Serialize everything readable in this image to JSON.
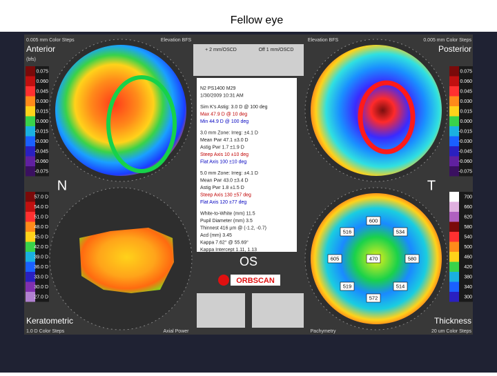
{
  "header": {
    "title": "Fellow eye"
  },
  "maps": [
    {
      "name": "Anterior",
      "map_type": "Elevation BFS",
      "steps": "0.005 mm Color Steps",
      "reference": "(bfs)",
      "scale": [
        "0.075",
        "0.060",
        "0.045",
        "0.030",
        "0.015",
        "0.000",
        "-0.015",
        "-0.030",
        "-0.045",
        "-0.060",
        "-0.075"
      ]
    },
    {
      "name": "Posterior",
      "map_type": "Elevation BFS",
      "steps": "0.005 mm Color Steps",
      "scale": [
        "0.075",
        "0.060",
        "0.045",
        "0.030",
        "0.015",
        "0.000",
        "-0.015",
        "-0.030",
        "-0.045",
        "-0.060",
        "-0.075"
      ]
    },
    {
      "name": "Keratometric",
      "map_type": "Axial Power",
      "steps": "1.0 D Color Steps",
      "scale": [
        "57.0 D",
        "54.0 D",
        "51.0 D",
        "48.0 D",
        "45.0 D",
        "42.0 D",
        "39.0 D",
        "36.0 D",
        "33.0 D",
        "30.0 D",
        "27.0 D"
      ]
    },
    {
      "name": "Thickness",
      "map_type": "Pachymetry",
      "steps": "20 um Color Steps",
      "scale": [
        "700",
        "660",
        "620",
        "580",
        "540",
        "500",
        "460",
        "420",
        "380",
        "340",
        "300"
      ]
    }
  ],
  "orientation": {
    "nasal": "N",
    "temporal": "T",
    "eye": "OS"
  },
  "top_boxes": [
    "+ 2 mm/OSCD",
    "Off 1 mm/OSCD"
  ],
  "info": {
    "lines": [
      "N2 PS1400 M29",
      "1/30/2009 10:31 AM",
      "Sim K's Astig: 3.0 D @ 100 deg",
      "Max 47.9 D @ 10 deg",
      "Min 44.9 D @ 100 deg",
      "3.0 mm Zone:  Irreg: ±4.1 D",
      "Mean Pwr  47.1  ±3.0 D",
      "Astig Pwr  1.7  ±1.9 D",
      "Steep Axis  10  ±10 deg",
      "Flat Axis  100  ±10 deg",
      "5.0 mm Zone:  Irreg: ±4.1 D",
      "Mean Pwr  43.0  ±3.4 D",
      "Astig Pwr  1.8  ±1.5 D",
      "Steep Axis  130  ±57 deg",
      "Flat Axis  120  ±77 deg",
      "White-to-White (mm) 11.5",
      "Pupil Diameter (mm) 3.5",
      "Thinnest 416 µm @ (-1.2, -0.7)",
      "Acd (mm) 3.45",
      "Kappa 7.62° @ 55.69°",
      "Kappa Intercept 1.11, 1.13"
    ]
  },
  "pachymetry_points": [
    "600",
    "516",
    "534",
    "605",
    "470",
    "580",
    "519",
    "514",
    "572"
  ],
  "logo": "ORBSCAN"
}
